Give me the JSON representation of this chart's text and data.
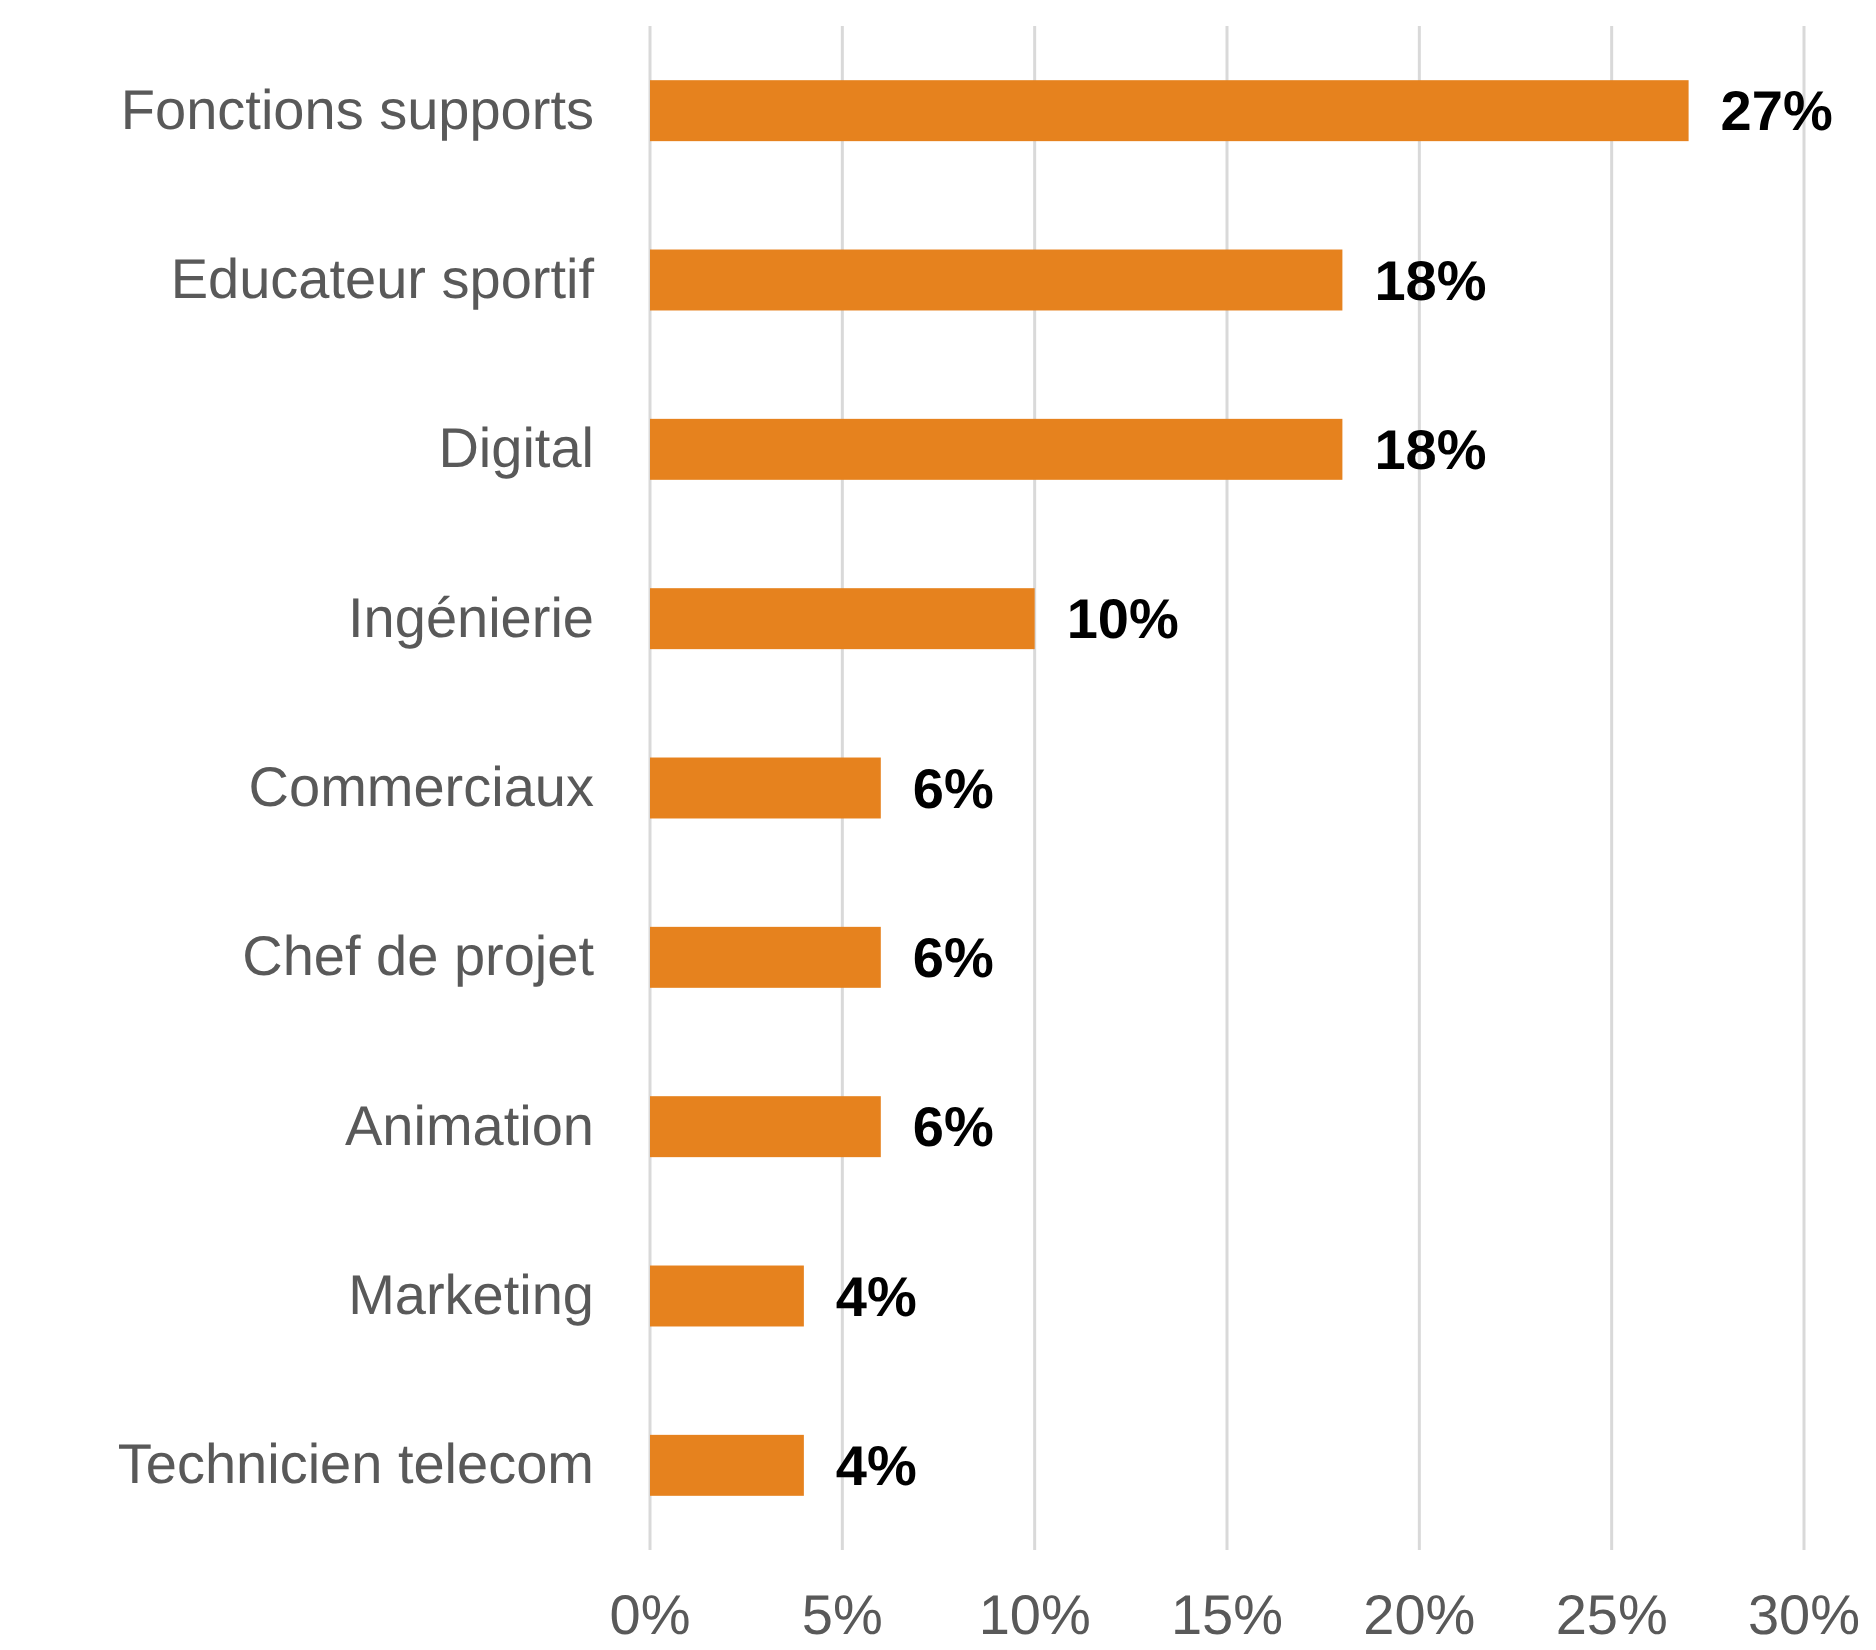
{
  "chart_data": {
    "type": "bar",
    "orientation": "horizontal",
    "categories": [
      "Fonctions supports",
      "Educateur sportif",
      "Digital",
      "Ingénierie",
      "Commerciaux",
      "Chef de projet",
      "Animation",
      "Marketing",
      "Technicien telecom"
    ],
    "values": [
      27,
      18,
      18,
      10,
      6,
      6,
      6,
      4,
      4
    ],
    "color": "#e6821e",
    "xlim": [
      0,
      30
    ],
    "xticks": [
      {
        "value": 0,
        "label": "0%"
      },
      {
        "value": 5,
        "label": "5%"
      },
      {
        "value": 10,
        "label": "10%"
      },
      {
        "value": 15,
        "label": "15%"
      },
      {
        "value": 20,
        "label": "20%"
      },
      {
        "value": 25,
        "label": "25%"
      },
      {
        "value": 30,
        "label": "30%"
      }
    ],
    "grid": "x",
    "data_labels": true,
    "value_labels": [
      "27%",
      "18%",
      "18%",
      "10%",
      "6%",
      "6%",
      "6%",
      "4%",
      "4%"
    ]
  }
}
